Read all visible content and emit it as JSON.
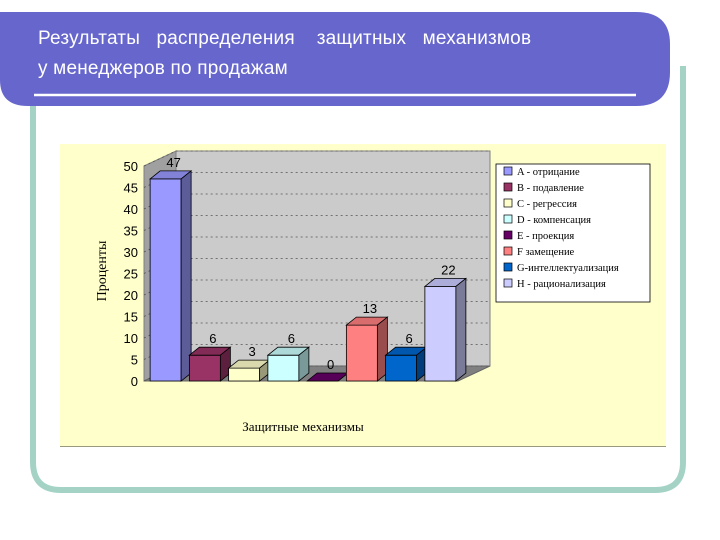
{
  "slide": {
    "title_line1": "Результаты   распределения    защитных   механизмов",
    "title_line2": "у менеджеров по продажам"
  },
  "colors": {
    "banner": "#6666cc",
    "frame": "#a4d3c6",
    "chart_bg": "#ffffcc",
    "wall": "#cbcbcb"
  },
  "chart_data": {
    "type": "bar",
    "title": "",
    "xlabel": "Защитные механизмы",
    "ylabel": "Проценты",
    "ylim": [
      0,
      50
    ],
    "yticks": [
      "0",
      "5",
      "10",
      "15",
      "20",
      "25",
      "30",
      "35",
      "40",
      "45",
      "50"
    ],
    "grid": true,
    "legend_position": "right",
    "series": [
      {
        "name": "A - отрицание",
        "value": 47,
        "color": "#9999ff"
      },
      {
        "name": "B - подавление",
        "value": 6,
        "color": "#993366"
      },
      {
        "name": "C - регрессия",
        "value": 3,
        "color": "#ffffcc"
      },
      {
        "name": "D - компенсация",
        "value": 6,
        "color": "#ccffff"
      },
      {
        "name": "E - проекция",
        "value": 0,
        "color": "#660066"
      },
      {
        "name": "F замещение",
        "value": 13,
        "color": "#ff8080"
      },
      {
        "name": "G-интеллектуализация",
        "value": 6,
        "color": "#0066cc"
      },
      {
        "name": "H - рационализация",
        "value": 22,
        "color": "#ccccff"
      }
    ],
    "data_labels": [
      "47",
      "6",
      "3",
      "6",
      "0",
      "13",
      "6",
      "22"
    ]
  }
}
